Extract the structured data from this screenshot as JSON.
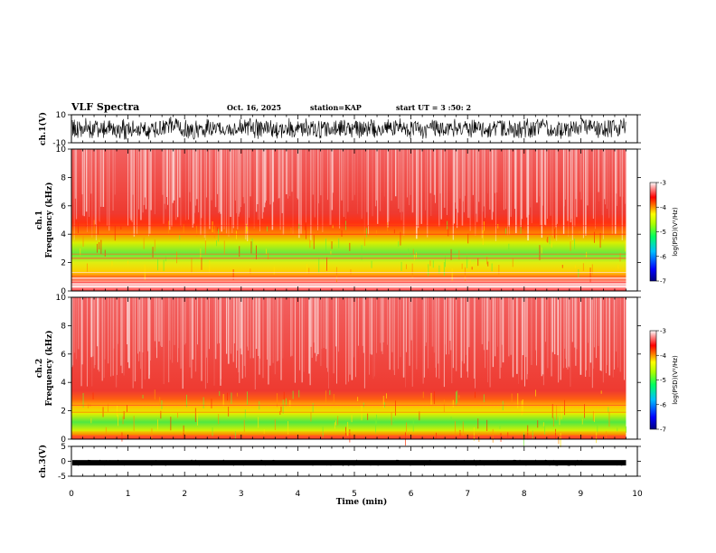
{
  "header": {
    "title": "VLF Spectra",
    "date": "Oct. 16, 2025",
    "station": "station=KAP",
    "start": "start  UT =   3 :50: 2"
  },
  "chart_data": [
    {
      "type": "line",
      "name": "ch1-waveform",
      "ylabel": "ch.1(V)",
      "ylim": [
        -10,
        10
      ],
      "yticks": [
        "10",
        "-10"
      ],
      "xlim": [
        0,
        10
      ],
      "note": "dense noisy waveform spanning roughly -8 to 8 V over 0-9.8 min"
    },
    {
      "type": "heatmap",
      "name": "ch1-spectrogram",
      "ylabel_top": "ch.1",
      "ylabel": "Frequency  (kHz)",
      "ylim": [
        0,
        10
      ],
      "yticks": [
        "0",
        "2",
        "4",
        "6",
        "8",
        "10"
      ],
      "xlim": [
        0,
        10
      ],
      "data_end_min": 9.8,
      "bands_khz": [
        {
          "from": 0,
          "to": 1,
          "level": -2.8
        },
        {
          "from": 1,
          "to": 2,
          "level": -4.3
        },
        {
          "from": 2,
          "to": 3.5,
          "level": -4.8
        },
        {
          "from": 3.5,
          "to": 5,
          "level": -4.2
        },
        {
          "from": 5,
          "to": 10,
          "level": -3.6
        }
      ],
      "colorbar": {
        "label": "log(PSD)(V²/Hz)",
        "ticks": [
          "-3",
          "-4",
          "-5",
          "-6",
          "-7"
        ],
        "range": [
          -7,
          -3
        ]
      }
    },
    {
      "type": "heatmap",
      "name": "ch2-spectrogram",
      "ylabel_top": "ch.2",
      "ylabel": "Frequency  (kHz)",
      "ylim": [
        0,
        10
      ],
      "yticks": [
        "0",
        "2",
        "4",
        "6",
        "8",
        "10"
      ],
      "xlim": [
        0,
        10
      ],
      "data_end_min": 9.8,
      "bands_khz": [
        {
          "from": 0,
          "to": 0.6,
          "level": -3.8
        },
        {
          "from": 0.6,
          "to": 2.2,
          "level": -5.0
        },
        {
          "from": 2.2,
          "to": 3.2,
          "level": -4.3
        },
        {
          "from": 3.2,
          "to": 10,
          "level": -3.6
        }
      ],
      "colorbar": {
        "label": "log(PSD)(V²/Hz)",
        "ticks": [
          "-3",
          "-4",
          "-5",
          "-6",
          "-7"
        ],
        "range": [
          -7,
          -3
        ]
      }
    },
    {
      "type": "line",
      "name": "ch3-waveform",
      "ylabel": "ch.3(V)",
      "ylim": [
        -5,
        5
      ],
      "yticks": [
        "5",
        "0",
        "-5"
      ],
      "xlim": [
        0,
        10
      ],
      "note": "nearly constant signal around -0.5 V over 0-9.8 min"
    }
  ],
  "xaxis": {
    "label": "Time  (min)",
    "ticks": [
      "0",
      "1",
      "2",
      "3",
      "4",
      "5",
      "6",
      "7",
      "8",
      "9",
      "10"
    ],
    "range": [
      0,
      10
    ]
  },
  "colors": {
    "psd_scale": [
      "#00007f",
      "#0000ff",
      "#00bfff",
      "#00ff7f",
      "#7fff00",
      "#ffff00",
      "#ff7f00",
      "#ff0000",
      "#ff7f7f",
      "#ffffff"
    ]
  }
}
